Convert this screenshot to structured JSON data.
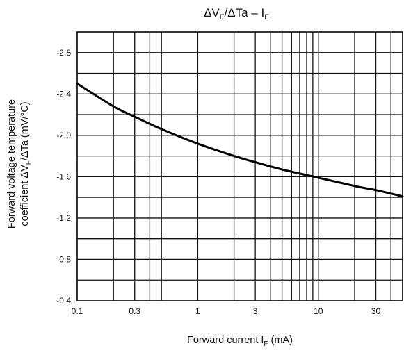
{
  "chart_data": {
    "type": "line",
    "title": {
      "pre": "ΔV",
      "pre_sub": "F",
      "mid": "/ΔTa   –   I",
      "mid_sub": "F"
    },
    "xlabel": {
      "pre": "Forward current  I",
      "sub": "F",
      "post": "  (mA)"
    },
    "ylabel": {
      "line1": "Forward voltage temperature",
      "line2_pre": "coefficient ΔV",
      "line2_sub": "F",
      "line2_post": "/ΔTa   (mV/°C)"
    },
    "x_scale": "log",
    "xlim": [
      0.1,
      50
    ],
    "ylim": [
      -0.4,
      -3.0
    ],
    "x_ticks": [
      0.1,
      0.3,
      1,
      3,
      10,
      30
    ],
    "x_tick_labels": [
      "0.1",
      "0.3",
      "1",
      "3",
      "10",
      "30"
    ],
    "y_ticks": [
      -0.4,
      -0.8,
      -1.2,
      -1.6,
      -2.0,
      -2.4,
      -2.8
    ],
    "y_tick_labels": [
      "-0.4",
      "-0.8",
      "-1.2",
      "-1.6",
      "-2.0",
      "-2.4",
      "-2.8"
    ],
    "y_grid": [
      -0.4,
      -0.6,
      -0.8,
      -1.0,
      -1.2,
      -1.4,
      -1.6,
      -1.8,
      -2.0,
      -2.2,
      -2.4,
      -2.6,
      -2.8,
      -3.0
    ],
    "x_grid": [
      0.1,
      0.2,
      0.3,
      0.4,
      0.5,
      1,
      2,
      3,
      4,
      5,
      6,
      7,
      8,
      9,
      10,
      20,
      30,
      40,
      50
    ],
    "grid": true,
    "series": [
      {
        "x": [
          0.1,
          0.2,
          0.3,
          0.5,
          1,
          2,
          3,
          5,
          10,
          20,
          30,
          50
        ],
        "y": [
          -2.5,
          -2.28,
          -2.18,
          -2.06,
          -1.92,
          -1.8,
          -1.74,
          -1.67,
          -1.59,
          -1.51,
          -1.47,
          -1.41
        ]
      }
    ]
  }
}
